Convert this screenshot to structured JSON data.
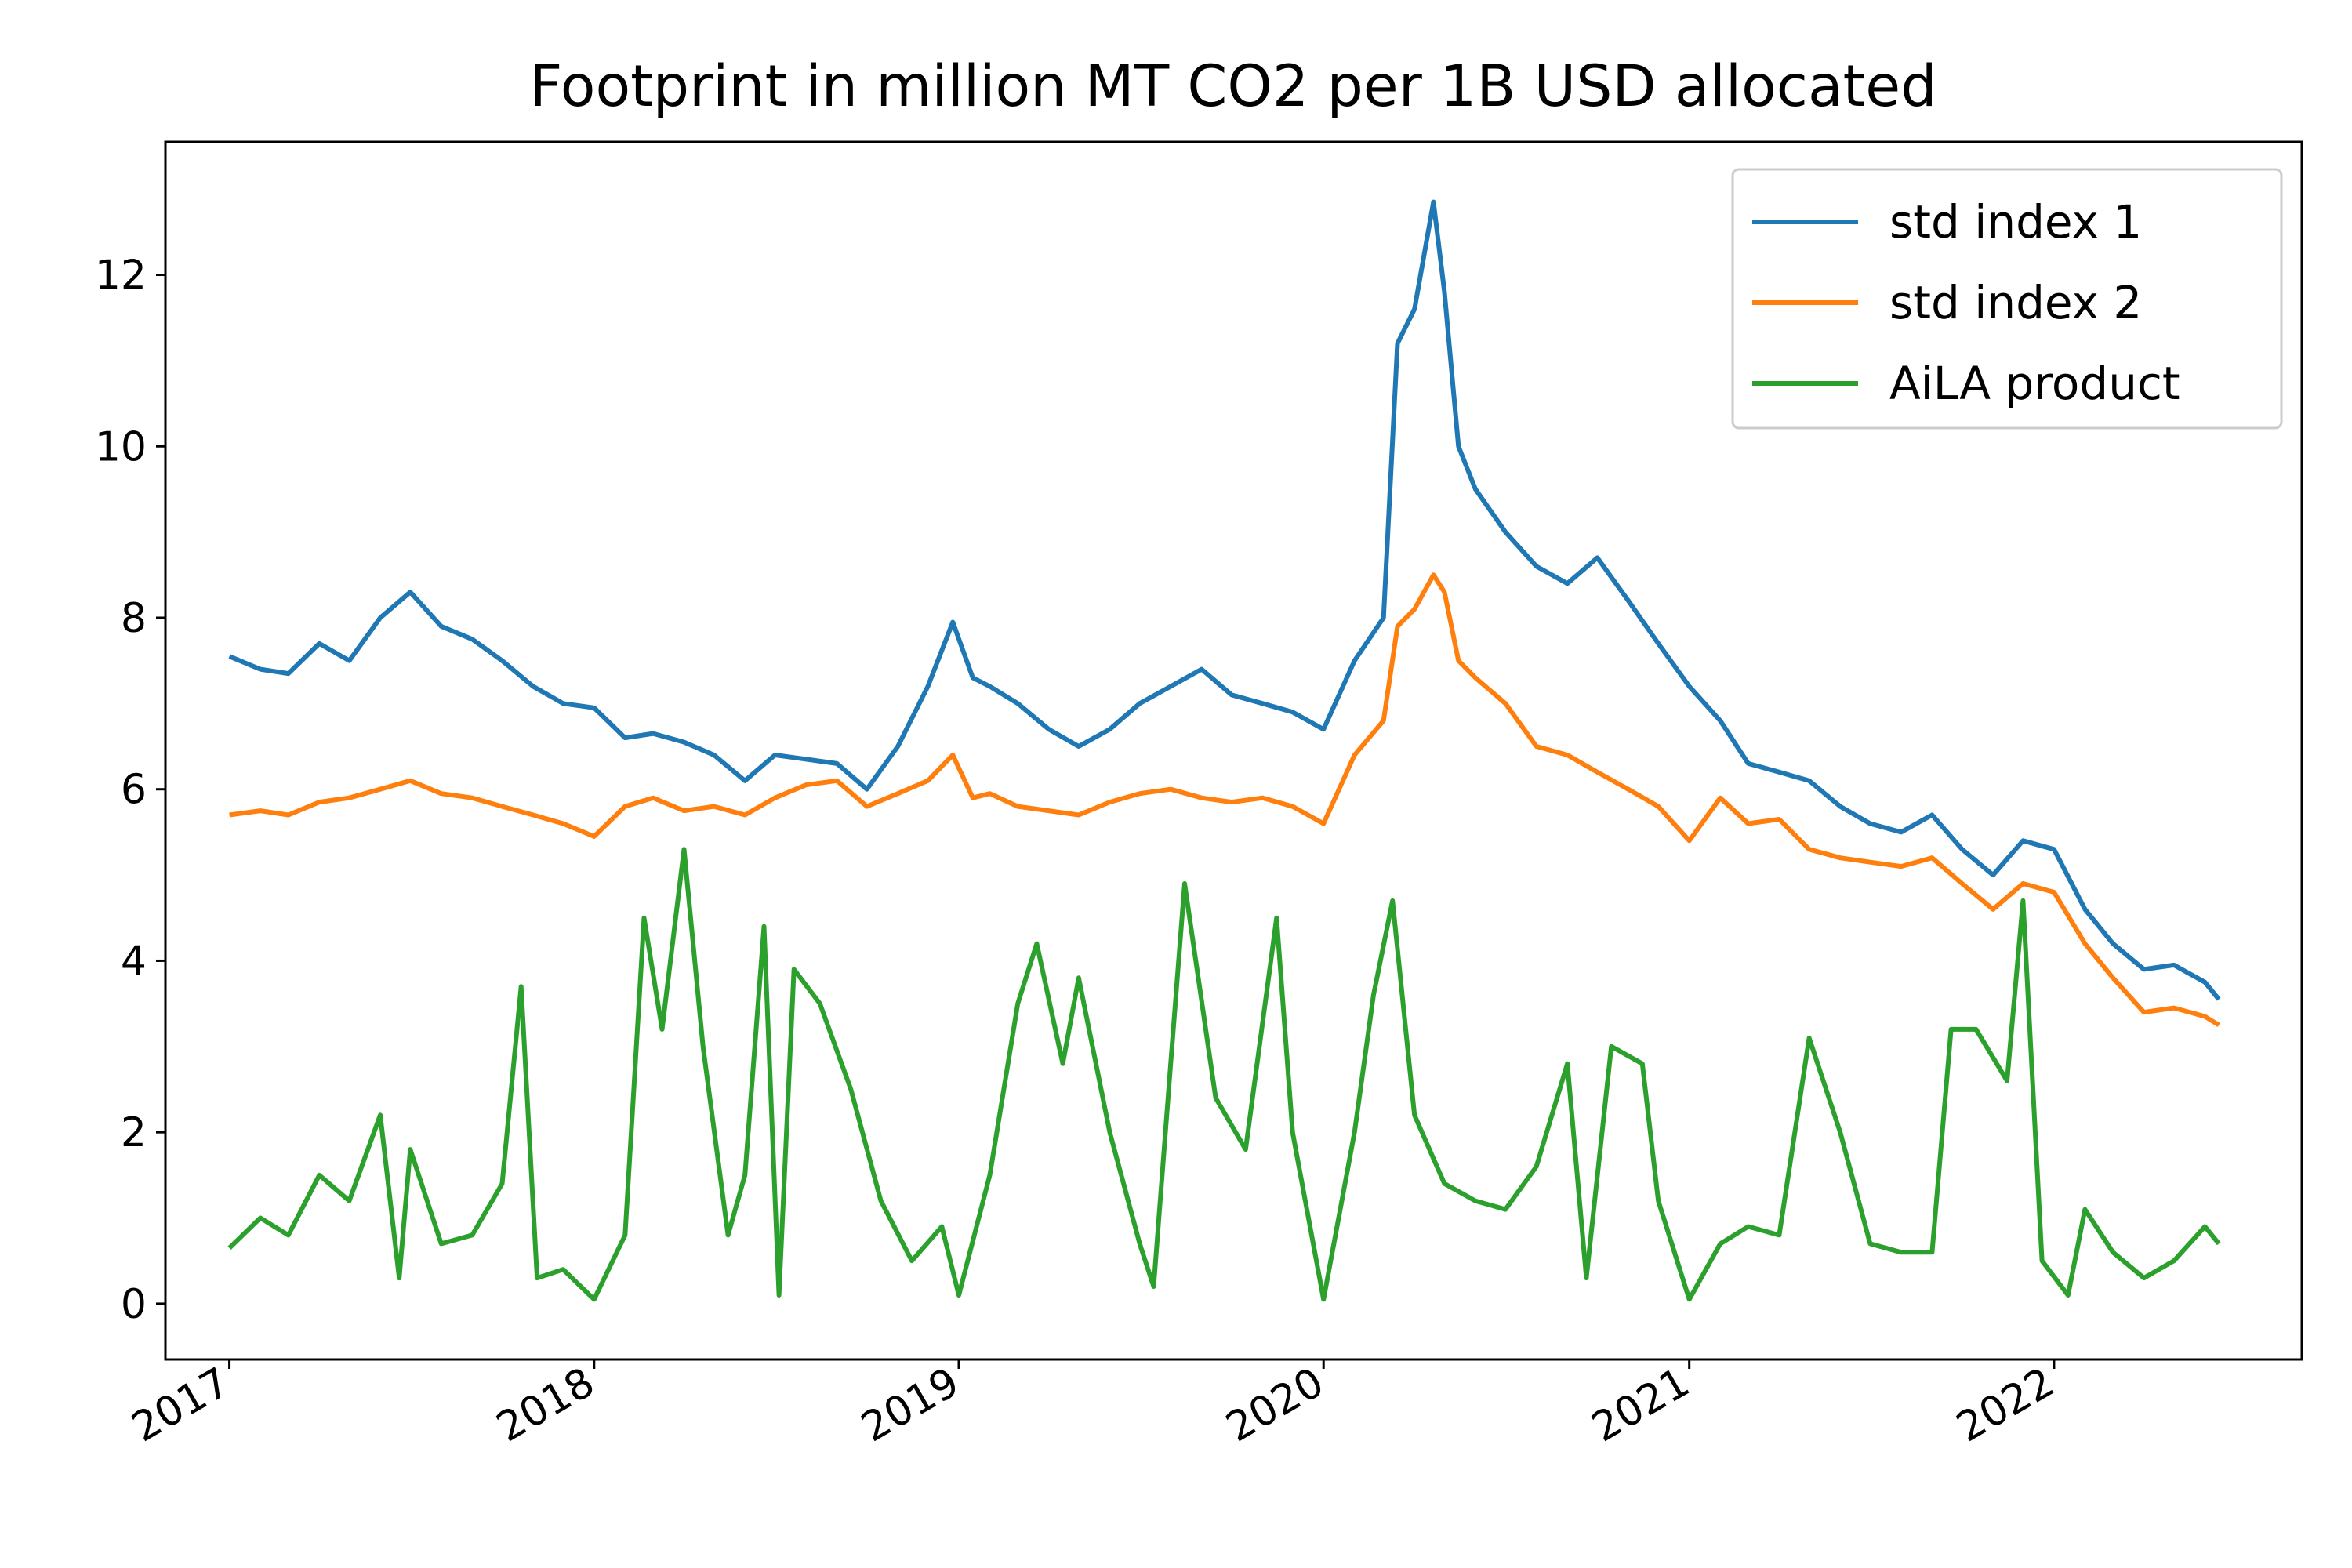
{
  "chart_data": {
    "type": "line",
    "title": "Footprint in million MT CO2 per 1B USD allocated",
    "xlabel": "",
    "ylabel": "",
    "x_axis": {
      "kind": "date",
      "range": [
        "2016-10-29",
        "2022-09-06"
      ],
      "ticks": [
        "2017",
        "2018",
        "2019",
        "2020",
        "2021",
        "2022"
      ],
      "label_rotation": "30 degrees"
    },
    "y_axis": {
      "range": [
        -0.65,
        13.55
      ],
      "ticks": [
        0,
        2,
        4,
        6,
        8,
        10,
        12
      ]
    },
    "grid": false,
    "legend": "top-right",
    "series": [
      {
        "name": "std index 1",
        "color": "#1f77b4",
        "points": [
          [
            "2017-01-01",
            7.55
          ],
          [
            "2017-02-01",
            7.4
          ],
          [
            "2017-03-01",
            7.35
          ],
          [
            "2017-04-01",
            7.7
          ],
          [
            "2017-05-01",
            7.5
          ],
          [
            "2017-06-01",
            8.0
          ],
          [
            "2017-07-01",
            8.3
          ],
          [
            "2017-08-01",
            7.9
          ],
          [
            "2017-09-01",
            7.75
          ],
          [
            "2017-10-01",
            7.5
          ],
          [
            "2017-11-01",
            7.2
          ],
          [
            "2017-12-01",
            7.0
          ],
          [
            "2018-01-01",
            6.95
          ],
          [
            "2018-02-01",
            6.6
          ],
          [
            "2018-03-01",
            6.65
          ],
          [
            "2018-04-01",
            6.55
          ],
          [
            "2018-05-01",
            6.4
          ],
          [
            "2018-06-01",
            6.1
          ],
          [
            "2018-07-01",
            6.4
          ],
          [
            "2018-08-01",
            6.35
          ],
          [
            "2018-09-01",
            6.3
          ],
          [
            "2018-10-01",
            6.0
          ],
          [
            "2018-11-01",
            6.5
          ],
          [
            "2018-12-01",
            7.2
          ],
          [
            "2018-12-26",
            7.95
          ],
          [
            "2019-01-15",
            7.3
          ],
          [
            "2019-02-01",
            7.2
          ],
          [
            "2019-03-01",
            7.0
          ],
          [
            "2019-04-01",
            6.7
          ],
          [
            "2019-05-01",
            6.5
          ],
          [
            "2019-06-01",
            6.7
          ],
          [
            "2019-07-01",
            7.0
          ],
          [
            "2019-08-01",
            7.2
          ],
          [
            "2019-09-01",
            7.4
          ],
          [
            "2019-10-01",
            7.1
          ],
          [
            "2019-11-01",
            7.0
          ],
          [
            "2019-12-01",
            6.9
          ],
          [
            "2020-01-01",
            6.7
          ],
          [
            "2020-02-01",
            7.5
          ],
          [
            "2020-03-01",
            8.0
          ],
          [
            "2020-03-15",
            11.2
          ],
          [
            "2020-04-01",
            11.6
          ],
          [
            "2020-04-20",
            12.85
          ],
          [
            "2020-05-01",
            11.8
          ],
          [
            "2020-05-15",
            10.0
          ],
          [
            "2020-06-01",
            9.5
          ],
          [
            "2020-07-01",
            9.0
          ],
          [
            "2020-08-01",
            8.6
          ],
          [
            "2020-09-01",
            8.4
          ],
          [
            "2020-10-01",
            8.7
          ],
          [
            "2020-11-01",
            8.2
          ],
          [
            "2020-12-01",
            7.7
          ],
          [
            "2021-01-01",
            7.2
          ],
          [
            "2021-02-01",
            6.8
          ],
          [
            "2021-03-01",
            6.3
          ],
          [
            "2021-04-01",
            6.2
          ],
          [
            "2021-05-01",
            6.1
          ],
          [
            "2021-06-01",
            5.8
          ],
          [
            "2021-07-01",
            5.6
          ],
          [
            "2021-08-01",
            5.5
          ],
          [
            "2021-09-01",
            5.7
          ],
          [
            "2021-10-01",
            5.3
          ],
          [
            "2021-11-01",
            5.0
          ],
          [
            "2021-12-01",
            5.4
          ],
          [
            "2022-01-01",
            5.3
          ],
          [
            "2022-02-01",
            4.6
          ],
          [
            "2022-03-01",
            4.2
          ],
          [
            "2022-04-01",
            3.9
          ],
          [
            "2022-05-01",
            3.95
          ],
          [
            "2022-06-01",
            3.75
          ],
          [
            "2022-06-15",
            3.55
          ]
        ]
      },
      {
        "name": "std index 2",
        "color": "#ff7f0e",
        "points": [
          [
            "2017-01-01",
            5.7
          ],
          [
            "2017-02-01",
            5.75
          ],
          [
            "2017-03-01",
            5.7
          ],
          [
            "2017-04-01",
            5.85
          ],
          [
            "2017-05-01",
            5.9
          ],
          [
            "2017-06-01",
            6.0
          ],
          [
            "2017-07-01",
            6.1
          ],
          [
            "2017-08-01",
            5.95
          ],
          [
            "2017-09-01",
            5.9
          ],
          [
            "2017-10-01",
            5.8
          ],
          [
            "2017-11-01",
            5.7
          ],
          [
            "2017-12-01",
            5.6
          ],
          [
            "2018-01-01",
            5.45
          ],
          [
            "2018-02-01",
            5.8
          ],
          [
            "2018-03-01",
            5.9
          ],
          [
            "2018-04-01",
            5.75
          ],
          [
            "2018-05-01",
            5.8
          ],
          [
            "2018-06-01",
            5.7
          ],
          [
            "2018-07-01",
            5.9
          ],
          [
            "2018-08-01",
            6.05
          ],
          [
            "2018-09-01",
            6.1
          ],
          [
            "2018-10-01",
            5.8
          ],
          [
            "2018-11-01",
            5.95
          ],
          [
            "2018-12-01",
            6.1
          ],
          [
            "2018-12-26",
            6.4
          ],
          [
            "2019-01-15",
            5.9
          ],
          [
            "2019-02-01",
            5.95
          ],
          [
            "2019-03-01",
            5.8
          ],
          [
            "2019-04-01",
            5.75
          ],
          [
            "2019-05-01",
            5.7
          ],
          [
            "2019-06-01",
            5.85
          ],
          [
            "2019-07-01",
            5.95
          ],
          [
            "2019-08-01",
            6.0
          ],
          [
            "2019-09-01",
            5.9
          ],
          [
            "2019-10-01",
            5.85
          ],
          [
            "2019-11-01",
            5.9
          ],
          [
            "2019-12-01",
            5.8
          ],
          [
            "2020-01-01",
            5.6
          ],
          [
            "2020-02-01",
            6.4
          ],
          [
            "2020-03-01",
            6.8
          ],
          [
            "2020-03-15",
            7.9
          ],
          [
            "2020-04-01",
            8.1
          ],
          [
            "2020-04-20",
            8.5
          ],
          [
            "2020-05-01",
            8.3
          ],
          [
            "2020-05-15",
            7.5
          ],
          [
            "2020-06-01",
            7.3
          ],
          [
            "2020-07-01",
            7.0
          ],
          [
            "2020-08-01",
            6.5
          ],
          [
            "2020-09-01",
            6.4
          ],
          [
            "2020-10-01",
            6.2
          ],
          [
            "2020-11-01",
            6.0
          ],
          [
            "2020-12-01",
            5.8
          ],
          [
            "2021-01-01",
            5.4
          ],
          [
            "2021-02-01",
            5.9
          ],
          [
            "2021-03-01",
            5.6
          ],
          [
            "2021-04-01",
            5.65
          ],
          [
            "2021-05-01",
            5.3
          ],
          [
            "2021-06-01",
            5.2
          ],
          [
            "2021-07-01",
            5.15
          ],
          [
            "2021-08-01",
            5.1
          ],
          [
            "2021-09-01",
            5.2
          ],
          [
            "2021-10-01",
            4.9
          ],
          [
            "2021-11-01",
            4.6
          ],
          [
            "2021-12-01",
            4.9
          ],
          [
            "2022-01-01",
            4.8
          ],
          [
            "2022-02-01",
            4.2
          ],
          [
            "2022-03-01",
            3.8
          ],
          [
            "2022-04-01",
            3.4
          ],
          [
            "2022-05-01",
            3.45
          ],
          [
            "2022-06-01",
            3.35
          ],
          [
            "2022-06-15",
            3.25
          ]
        ]
      },
      {
        "name": "AiLA product",
        "color": "#2ca02c",
        "points": [
          [
            "2017-01-01",
            0.65
          ],
          [
            "2017-02-01",
            1.0
          ],
          [
            "2017-03-01",
            0.8
          ],
          [
            "2017-04-01",
            1.5
          ],
          [
            "2017-05-01",
            1.2
          ],
          [
            "2017-06-01",
            2.2
          ],
          [
            "2017-06-20",
            0.3
          ],
          [
            "2017-07-01",
            1.8
          ],
          [
            "2017-08-01",
            0.7
          ],
          [
            "2017-09-01",
            0.8
          ],
          [
            "2017-10-01",
            1.4
          ],
          [
            "2017-10-20",
            3.7
          ],
          [
            "2017-11-05",
            0.3
          ],
          [
            "2017-12-01",
            0.4
          ],
          [
            "2018-01-01",
            0.05
          ],
          [
            "2018-02-01",
            0.8
          ],
          [
            "2018-02-20",
            4.5
          ],
          [
            "2018-03-10",
            3.2
          ],
          [
            "2018-04-01",
            5.3
          ],
          [
            "2018-04-20",
            3.0
          ],
          [
            "2018-05-15",
            0.8
          ],
          [
            "2018-06-01",
            1.5
          ],
          [
            "2018-06-20",
            4.4
          ],
          [
            "2018-07-05",
            0.1
          ],
          [
            "2018-07-20",
            3.9
          ],
          [
            "2018-08-15",
            3.5
          ],
          [
            "2018-09-15",
            2.5
          ],
          [
            "2018-10-15",
            1.2
          ],
          [
            "2018-11-15",
            0.5
          ],
          [
            "2018-12-15",
            0.9
          ],
          [
            "2019-01-01",
            0.1
          ],
          [
            "2019-02-01",
            1.5
          ],
          [
            "2019-03-01",
            3.5
          ],
          [
            "2019-03-20",
            4.2
          ],
          [
            "2019-04-15",
            2.8
          ],
          [
            "2019-05-01",
            3.8
          ],
          [
            "2019-06-01",
            2.0
          ],
          [
            "2019-07-01",
            0.7
          ],
          [
            "2019-07-15",
            0.2
          ],
          [
            "2019-08-01",
            2.8
          ],
          [
            "2019-08-15",
            4.9
          ],
          [
            "2019-09-15",
            2.4
          ],
          [
            "2019-10-15",
            1.8
          ],
          [
            "2019-11-15",
            4.5
          ],
          [
            "2019-12-01",
            2.0
          ],
          [
            "2020-01-01",
            0.05
          ],
          [
            "2020-02-01",
            2.0
          ],
          [
            "2020-02-20",
            3.6
          ],
          [
            "2020-03-10",
            4.7
          ],
          [
            "2020-04-01",
            2.2
          ],
          [
            "2020-05-01",
            1.4
          ],
          [
            "2020-06-01",
            1.2
          ],
          [
            "2020-07-01",
            1.1
          ],
          [
            "2020-08-01",
            1.6
          ],
          [
            "2020-09-01",
            2.8
          ],
          [
            "2020-09-20",
            0.3
          ],
          [
            "2020-10-15",
            3.0
          ],
          [
            "2020-11-15",
            2.8
          ],
          [
            "2020-12-01",
            1.2
          ],
          [
            "2021-01-01",
            0.05
          ],
          [
            "2021-02-01",
            0.7
          ],
          [
            "2021-03-01",
            0.9
          ],
          [
            "2021-04-01",
            0.8
          ],
          [
            "2021-05-01",
            3.1
          ],
          [
            "2021-06-01",
            2.0
          ],
          [
            "2021-07-01",
            0.7
          ],
          [
            "2021-08-01",
            0.6
          ],
          [
            "2021-09-01",
            0.6
          ],
          [
            "2021-09-20",
            3.2
          ],
          [
            "2021-10-15",
            3.2
          ],
          [
            "2021-11-15",
            2.6
          ],
          [
            "2021-12-01",
            4.7
          ],
          [
            "2021-12-20",
            0.5
          ],
          [
            "2022-01-15",
            0.1
          ],
          [
            "2022-02-01",
            1.1
          ],
          [
            "2022-03-01",
            0.6
          ],
          [
            "2022-04-01",
            0.3
          ],
          [
            "2022-05-01",
            0.5
          ],
          [
            "2022-06-01",
            0.9
          ],
          [
            "2022-06-15",
            0.7
          ]
        ]
      }
    ]
  }
}
